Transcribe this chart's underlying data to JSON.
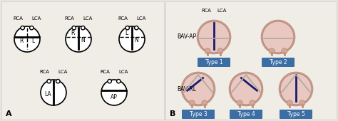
{
  "bg_color": "#f0ece8",
  "panel_a_bg": "#f5f3f0",
  "panel_b_bg": "#f5f3f0",
  "valve_fill": "#e8c8c0",
  "valve_edge": "#333333",
  "fused_line_color": "#1a1a6e",
  "raphe_color": "#888888",
  "type_box_color": "#3a6ea5",
  "type_text_color": "white",
  "label_color": "#222222",
  "fig_label_color": "#111111",
  "title_A": "A",
  "title_B": "B",
  "type_labels": [
    "Type 1",
    "Type 2",
    "Type 3",
    "Type 4",
    "Type 5"
  ],
  "bav_ap_label": "BAV-AP",
  "bav_rl_label": "BAV-RL",
  "rca_label": "RCA",
  "lca_label": "LCA"
}
